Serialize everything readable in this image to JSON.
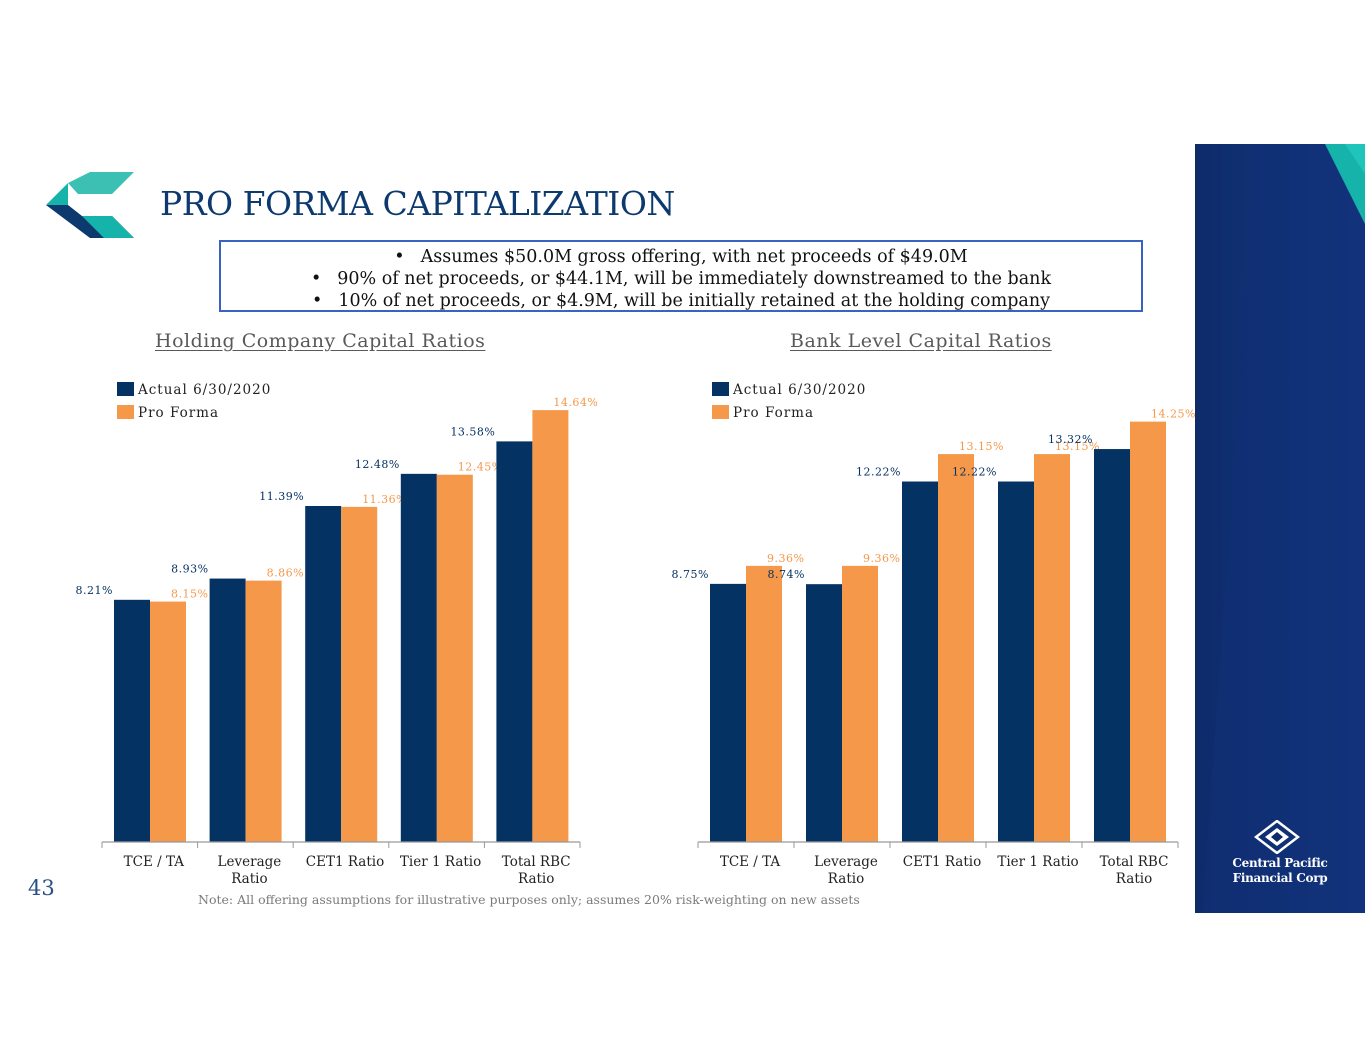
{
  "title": "PRO FORMA CAPITALIZATION",
  "bullets": [
    "Assumes $50.0M gross offering, with net proceeds of $49.0M",
    "90% of net proceeds, or $44.1M, will be immediately downstreamed to the bank",
    "10% of net proceeds, or $4.9M, will be initially retained at the holding company"
  ],
  "bullet_glyph": "•",
  "page_number": "43",
  "footnote": "Note: All offering assumptions for illustrative purposes only; assumes 20% risk-weighting on new assets",
  "company_name": [
    "Central Pacific",
    "Financial Corp"
  ],
  "colors": {
    "navy": "#043263",
    "orange": "#f5984a",
    "title": "#0d3a6e",
    "teal": "#16b3aa",
    "sidebar": "#0e2b6a"
  },
  "chart_data": [
    {
      "id": "holding",
      "type": "bar",
      "title": "Holding Company Capital Ratios",
      "categories": [
        [
          "TCE / TA"
        ],
        [
          "Leverage",
          "Ratio"
        ],
        [
          "CET1 Ratio"
        ],
        [
          "Tier 1 Ratio"
        ],
        [
          "Total RBC",
          "Ratio"
        ]
      ],
      "series": [
        {
          "name": "Actual 6/30/2020",
          "color": "#043263",
          "values": [
            8.21,
            8.93,
            11.39,
            12.48,
            13.58
          ],
          "labels": [
            "8.21%",
            "8.93%",
            "11.39%",
            "12.48%",
            "13.58%"
          ]
        },
        {
          "name": "Pro Forma",
          "color": "#f5984a",
          "values": [
            8.15,
            8.86,
            11.36,
            12.45,
            14.64
          ],
          "labels": [
            "8.15%",
            "8.86%",
            "11.36%",
            "12.45%",
            "14.64%"
          ]
        }
      ],
      "ylim": [
        0,
        16
      ],
      "legend": "top-left"
    },
    {
      "id": "bank",
      "type": "bar",
      "title": "Bank Level Capital Ratios",
      "categories": [
        [
          "TCE / TA"
        ],
        [
          "Leverage",
          "Ratio"
        ],
        [
          "CET1 Ratio"
        ],
        [
          "Tier 1 Ratio"
        ],
        [
          "Total RBC",
          "Ratio"
        ]
      ],
      "series": [
        {
          "name": "Actual 6/30/2020",
          "color": "#043263",
          "values": [
            8.75,
            8.74,
            12.22,
            12.22,
            13.32
          ],
          "labels": [
            "8.75%",
            "8.74%",
            "12.22%",
            "12.22%",
            "13.32%"
          ]
        },
        {
          "name": "Pro Forma",
          "color": "#f5984a",
          "values": [
            9.36,
            9.36,
            13.15,
            13.15,
            14.25
          ],
          "labels": [
            "9.36%",
            "9.36%",
            "13.15%",
            "13.15%",
            "14.25%"
          ]
        }
      ],
      "ylim": [
        0,
        16
      ],
      "legend": "top-left"
    }
  ]
}
